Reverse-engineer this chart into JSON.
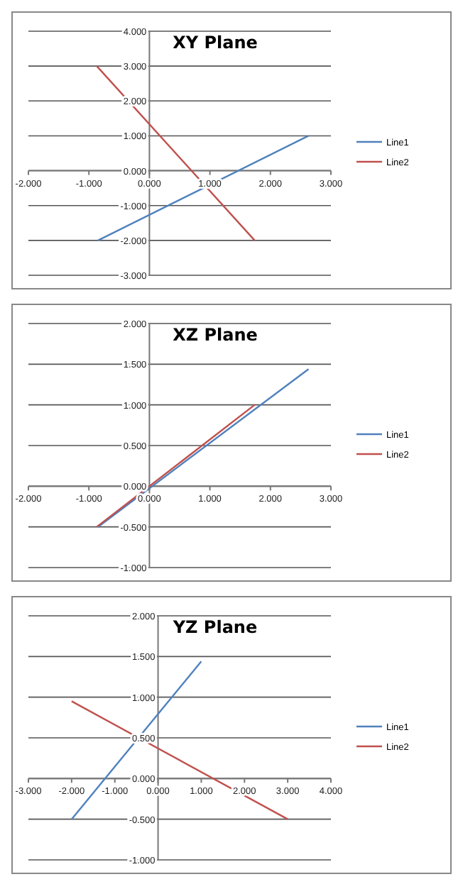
{
  "chart_data": [
    {
      "type": "line",
      "title": "XY Plane",
      "xlim": [
        -2,
        3
      ],
      "ylim": [
        -3,
        4
      ],
      "xticks": [
        {
          "value": -2,
          "label": "-2.000"
        },
        {
          "value": -1,
          "label": "-1.000"
        },
        {
          "value": 0,
          "label": "0.000"
        },
        {
          "value": 1,
          "label": "1.000"
        },
        {
          "value": 2,
          "label": "2.000"
        },
        {
          "value": 3,
          "label": "3.000"
        }
      ],
      "yticks": [
        {
          "value": -3,
          "label": "-3.000"
        },
        {
          "value": -2,
          "label": "-2.000"
        },
        {
          "value": -1,
          "label": "-1.000"
        },
        {
          "value": 0,
          "label": "0.000"
        },
        {
          "value": 1,
          "label": "1.000"
        },
        {
          "value": 2,
          "label": "2.000"
        },
        {
          "value": 3,
          "label": "3.000"
        },
        {
          "value": 4,
          "label": "4.000"
        }
      ],
      "grid": "y",
      "legend": "right",
      "marker": "none",
      "series": [
        {
          "name": "Line1",
          "color": "#4f81bd",
          "x": [
            -0.85,
            2.63
          ],
          "values": [
            -2,
            1
          ]
        },
        {
          "name": "Line2",
          "color": "#c0504d",
          "x": [
            -0.87,
            1.74
          ],
          "values": [
            3,
            -2
          ]
        }
      ]
    },
    {
      "type": "line",
      "title": "XZ Plane",
      "xlim": [
        -2,
        3
      ],
      "ylim": [
        -1,
        2
      ],
      "xticks": [
        {
          "value": -2,
          "label": "-2.000"
        },
        {
          "value": -1,
          "label": "-1.000"
        },
        {
          "value": 0,
          "label": "0.000"
        },
        {
          "value": 1,
          "label": "1.000"
        },
        {
          "value": 2,
          "label": "2.000"
        },
        {
          "value": 3,
          "label": "3.000"
        }
      ],
      "yticks": [
        {
          "value": -1,
          "label": "-1.000"
        },
        {
          "value": -0.5,
          "label": "-0.500"
        },
        {
          "value": 0,
          "label": "0.000"
        },
        {
          "value": 0.5,
          "label": "0.500"
        },
        {
          "value": 1,
          "label": "1.000"
        },
        {
          "value": 1.5,
          "label": "1.500"
        },
        {
          "value": 2,
          "label": "2.000"
        }
      ],
      "grid": "y",
      "legend": "right",
      "marker": "none",
      "series": [
        {
          "name": "Line1",
          "color": "#4f81bd",
          "x": [
            -0.85,
            2.63
          ],
          "values": [
            -0.5,
            1.44
          ]
        },
        {
          "name": "Line2",
          "color": "#c0504d",
          "x": [
            -0.87,
            1.74
          ],
          "values": [
            -0.5,
            1.0
          ]
        }
      ]
    },
    {
      "type": "line",
      "title": "YZ Plane",
      "xlim": [
        -3,
        4
      ],
      "ylim": [
        -1,
        2
      ],
      "xticks": [
        {
          "value": -3,
          "label": "-3.000"
        },
        {
          "value": -2,
          "label": "-2.000"
        },
        {
          "value": -1,
          "label": "-1.000"
        },
        {
          "value": 0,
          "label": "0.000"
        },
        {
          "value": 1,
          "label": "1.000"
        },
        {
          "value": 2,
          "label": "2.000"
        },
        {
          "value": 3,
          "label": "3.000"
        },
        {
          "value": 4,
          "label": "4.000"
        }
      ],
      "yticks": [
        {
          "value": -1,
          "label": "-1.000"
        },
        {
          "value": -0.5,
          "label": "-0.500"
        },
        {
          "value": 0,
          "label": "0.000"
        },
        {
          "value": 0.5,
          "label": "0.500"
        },
        {
          "value": 1,
          "label": "1.000"
        },
        {
          "value": 1.5,
          "label": "1.500"
        },
        {
          "value": 2,
          "label": "2.000"
        }
      ],
      "grid": "y",
      "legend": "right",
      "marker": "none",
      "series": [
        {
          "name": "Line1",
          "color": "#4f81bd",
          "x": [
            -2,
            1
          ],
          "values": [
            -0.5,
            1.44
          ]
        },
        {
          "name": "Line2",
          "color": "#c0504d",
          "x": [
            -2,
            3
          ],
          "values": [
            0.95,
            -0.5
          ]
        }
      ]
    }
  ]
}
